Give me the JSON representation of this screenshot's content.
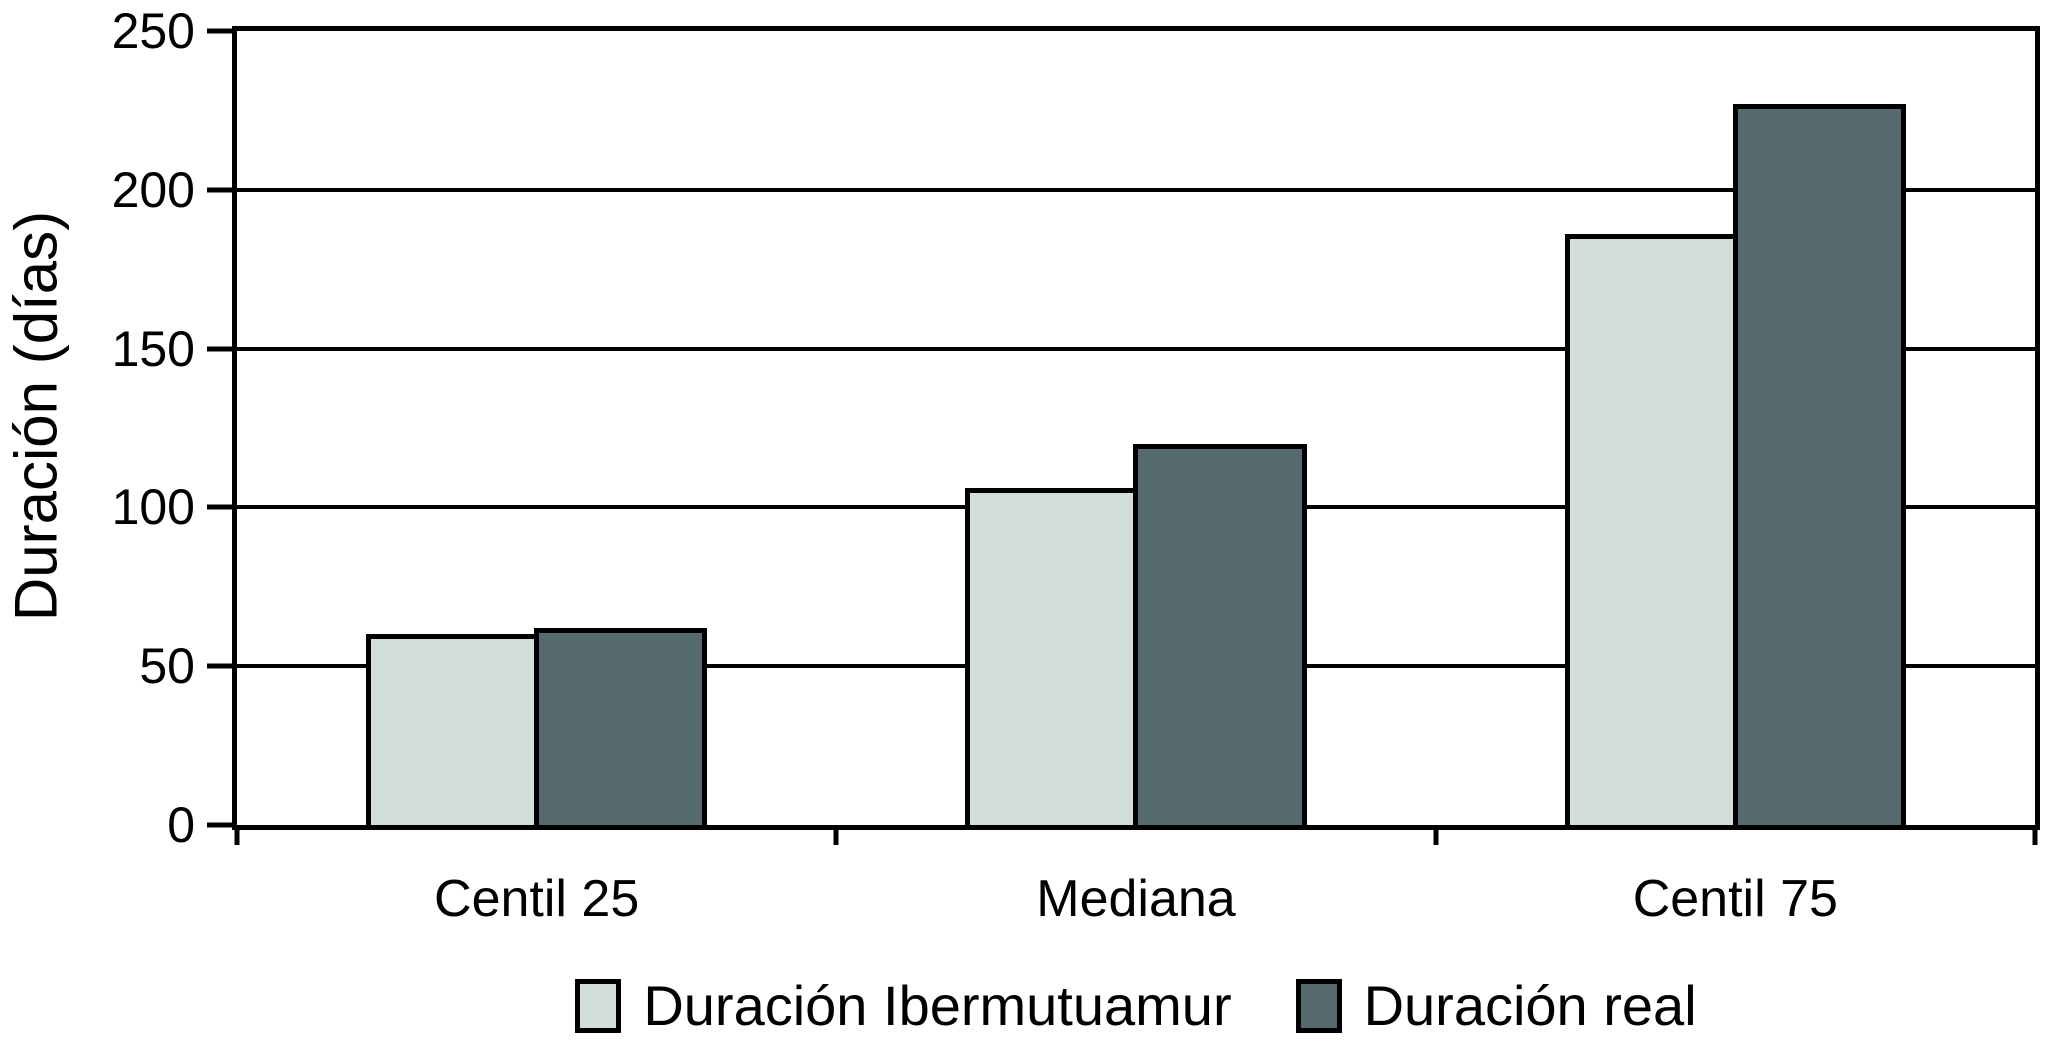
{
  "chart_data": {
    "type": "bar",
    "title": "",
    "categories": [
      "Centil 25",
      "Mediana",
      "Centil 75"
    ],
    "series": [
      {
        "name": "Duración Ibermutuamur",
        "color": "#d2dedb",
        "values": [
          60,
          106,
          186
        ]
      },
      {
        "name": "Duración real",
        "color": "#566a6d",
        "values": [
          62,
          120,
          227
        ]
      }
    ],
    "xlabel": "",
    "ylabel": "Duración (días)",
    "ylim": [
      0,
      250
    ],
    "yticks": [
      0,
      50,
      100,
      150,
      200,
      250
    ],
    "grid": "horizontal-only",
    "legend_position": "bottom",
    "line_color": "#000000",
    "background_color": "#ffffff"
  }
}
